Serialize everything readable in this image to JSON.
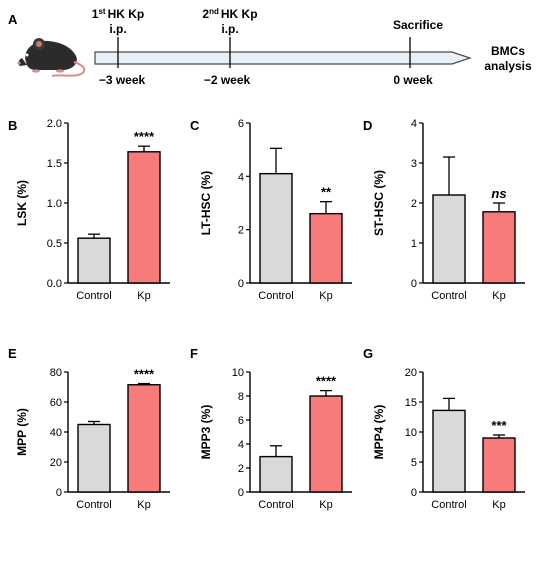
{
  "timeline": {
    "panel_label": "A",
    "events": [
      {
        "sup": "st",
        "label_pre": "1",
        "label_post": "HK Kp",
        "sub": "i.p.",
        "time": "−3 week"
      },
      {
        "sup": "nd",
        "label_pre": "2",
        "label_post": "HK Kp",
        "sub": "i.p.",
        "time": "−2 week"
      },
      {
        "label": "Sacrifice",
        "time": "0 week"
      }
    ],
    "end_label": [
      "BMCs",
      "analysis"
    ],
    "icon": "mouse-icon"
  },
  "colors": {
    "control": "#d9d9d9",
    "kp": "#f77b7b",
    "axis": "#000000"
  },
  "chart_data": [
    {
      "panel": "B",
      "type": "bar",
      "ylabel": "LSK (%)",
      "categories": [
        "Control",
        "Kp"
      ],
      "values": [
        0.56,
        1.64
      ],
      "errors": [
        0.05,
        0.07
      ],
      "ylim": [
        0,
        2.0
      ],
      "yticks": [
        "0.0",
        "0.5",
        "1.0",
        "1.5",
        "2.0"
      ],
      "significance": "****",
      "sig_italic": false
    },
    {
      "panel": "C",
      "type": "bar",
      "ylabel": "LT-HSC (%)",
      "categories": [
        "Control",
        "Kp"
      ],
      "values": [
        4.1,
        2.6
      ],
      "errors": [
        0.95,
        0.45
      ],
      "ylim": [
        0,
        6
      ],
      "yticks": [
        "0",
        "2",
        "4",
        "6"
      ],
      "significance": "**",
      "sig_italic": false
    },
    {
      "panel": "D",
      "type": "bar",
      "ylabel": "ST-HSC (%)",
      "categories": [
        "Control",
        "Kp"
      ],
      "values": [
        2.2,
        1.78
      ],
      "errors": [
        0.95,
        0.22
      ],
      "ylim": [
        0,
        4
      ],
      "yticks": [
        "0",
        "1",
        "2",
        "3",
        "4"
      ],
      "significance": "ns",
      "sig_italic": true
    },
    {
      "panel": "E",
      "type": "bar",
      "ylabel": "MPP (%)",
      "categories": [
        "Control",
        "Kp"
      ],
      "values": [
        45,
        71.5
      ],
      "errors": [
        2.0,
        0.8
      ],
      "ylim": [
        0,
        80
      ],
      "yticks": [
        "0",
        "20",
        "40",
        "60",
        "80"
      ],
      "significance": "****",
      "sig_italic": false
    },
    {
      "panel": "F",
      "type": "bar",
      "ylabel": "MPP3 (%)",
      "categories": [
        "Control",
        "Kp"
      ],
      "values": [
        2.95,
        8.0
      ],
      "errors": [
        0.9,
        0.45
      ],
      "ylim": [
        0,
        10
      ],
      "yticks": [
        "0",
        "2",
        "4",
        "6",
        "8",
        "10"
      ],
      "significance": "****",
      "sig_italic": false
    },
    {
      "panel": "G",
      "type": "bar",
      "ylabel": "MPP4 (%)",
      "categories": [
        "Control",
        "Kp"
      ],
      "values": [
        13.6,
        9.0
      ],
      "errors": [
        2.0,
        0.5
      ],
      "ylim": [
        0,
        20
      ],
      "yticks": [
        "0",
        "5",
        "10",
        "15",
        "20"
      ],
      "significance": "***",
      "sig_italic": false
    }
  ]
}
